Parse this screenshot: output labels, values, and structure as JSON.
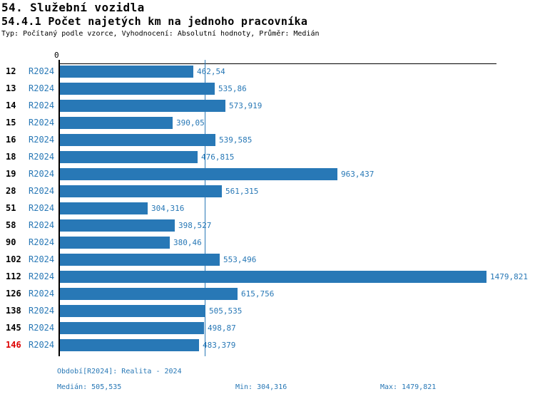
{
  "header": {
    "title1": "54. Služební vozidla"
  },
  "chart_data": {
    "type": "bar",
    "orientation": "horizontal",
    "title": "54.4.1 Počet najetých km na jednoho pracovníka",
    "subtitle": "Typ: Počítaný podle vzorce, Vyhodnocení: Absolutní hodnoty, Průměr: Medián",
    "origin_tick_label": "0",
    "series_label": "R2024",
    "categories": [
      "12",
      "13",
      "14",
      "15",
      "16",
      "18",
      "19",
      "28",
      "51",
      "58",
      "90",
      "102",
      "112",
      "126",
      "138",
      "145",
      "146"
    ],
    "values": [
      462.54,
      535.86,
      573.919,
      390.05,
      539.585,
      476.815,
      963.437,
      561.315,
      304.316,
      398.527,
      380.46,
      553.496,
      1479.821,
      615.756,
      505.535,
      498.87,
      483.379
    ],
    "value_labels": [
      "462,54",
      "535,86",
      "573,919",
      "390,05",
      "539,585",
      "476,815",
      "963,437",
      "561,315",
      "304,316",
      "398,527",
      "380,46",
      "553,496",
      "1479,821",
      "615,756",
      "505,535",
      "498,87",
      "483,379"
    ],
    "highlighted_category": "146",
    "stats": {
      "median": 505.535,
      "min": 304.316,
      "max": 1479.821
    },
    "median_line_value": 505.535,
    "xlim": [
      0,
      1514
    ],
    "grid": false,
    "legend": "none",
    "bar_color": "#2878b6",
    "label_color": "#2878b6",
    "median_line_color": "#2878b6",
    "highlight_color": "#dd0000"
  },
  "footer": {
    "period": "Období[R2024]: Realita - 2024",
    "median": "Medián: 505,535",
    "min": "Min: 304,316",
    "max": "Max: 1479,821"
  }
}
